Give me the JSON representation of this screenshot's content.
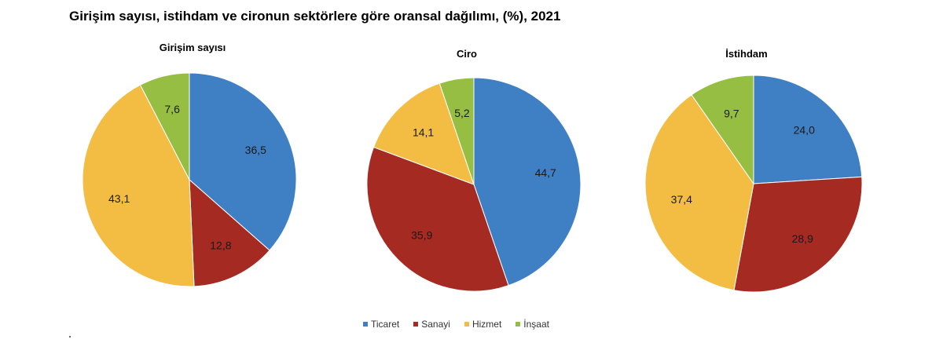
{
  "title": "Girişim sayısı, istihdam ve cironun sektörlere göre oransal dağılımı, (%), 2021",
  "legend": [
    "Ticaret",
    "Sanayi",
    "Hizmet",
    "İnşaat"
  ],
  "colors": {
    "Ticaret": "#3f7fc4",
    "Sanayi": "#a52a22",
    "Hizmet": "#f2bd42",
    "İnşaat": "#96be43"
  },
  "chart_data": [
    {
      "type": "pie",
      "title": "Girişim sayısı",
      "categories": [
        "Ticaret",
        "Sanayi",
        "Hizmet",
        "İnşaat"
      ],
      "values": [
        36.5,
        12.8,
        43.1,
        7.6
      ],
      "labels": [
        "36,5",
        "12,8",
        "43,1",
        "7,6"
      ]
    },
    {
      "type": "pie",
      "title": "Ciro",
      "categories": [
        "Ticaret",
        "Sanayi",
        "Hizmet",
        "İnşaat"
      ],
      "values": [
        44.7,
        35.9,
        14.1,
        5.2
      ],
      "labels": [
        "44,7",
        "35,9",
        "14,1",
        "5,2"
      ]
    },
    {
      "type": "pie",
      "title": "İstihdam",
      "categories": [
        "Ticaret",
        "Sanayi",
        "Hizmet",
        "İnşaat"
      ],
      "values": [
        24.0,
        28.9,
        37.4,
        9.7
      ],
      "labels": [
        "24,0",
        "28,9",
        "37,4",
        "9,7"
      ]
    }
  ]
}
